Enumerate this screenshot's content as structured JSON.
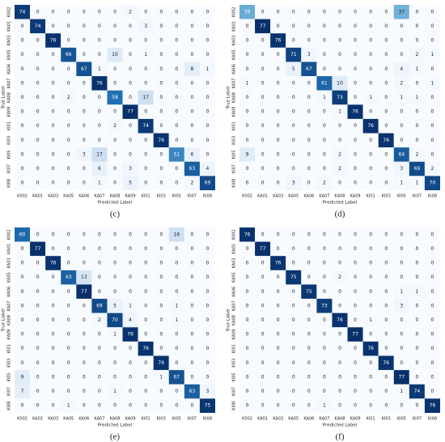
{
  "chart_data": [
    {
      "type": "heatmap",
      "caption": "(c)",
      "x_label": "Predicted Label",
      "y_label": "True Label",
      "categories": [
        "K002",
        "KA01",
        "KA03",
        "KA05",
        "KA06",
        "KA07",
        "KA08",
        "KA09",
        "KI01",
        "KI03",
        "KI05",
        "KI07",
        "KI08"
      ],
      "y_categories": [
        "K002",
        "KA01",
        "KA03",
        "KA05",
        "KA06",
        "KA07",
        "KA08",
        "KA09",
        "KI01",
        "KI03",
        "KI05",
        "KI07",
        "KI08"
      ],
      "colors": [
        "#f7fbff",
        "#c6dbef",
        "#6baed6",
        "#2171b5",
        "#08306b"
      ],
      "values": [
        [
          74,
          0,
          0,
          0,
          0,
          0,
          0,
          2,
          0,
          0,
          0,
          0,
          0
        ],
        [
          0,
          74,
          0,
          0,
          0,
          0,
          0,
          0,
          3,
          0,
          0,
          0,
          0
        ],
        [
          0,
          0,
          76,
          0,
          0,
          0,
          0,
          0,
          0,
          0,
          0,
          0,
          0
        ],
        [
          0,
          0,
          0,
          66,
          0,
          0,
          10,
          0,
          1,
          0,
          0,
          0,
          0
        ],
        [
          0,
          0,
          0,
          0,
          67,
          1,
          0,
          0,
          0,
          0,
          0,
          8,
          1
        ],
        [
          0,
          0,
          0,
          0,
          0,
          76,
          0,
          0,
          0,
          0,
          0,
          0,
          0
        ],
        [
          0,
          0,
          0,
          2,
          0,
          0,
          58,
          0,
          17,
          0,
          0,
          0,
          0
        ],
        [
          0,
          0,
          0,
          0,
          0,
          0,
          0,
          77,
          0,
          0,
          0,
          0,
          0
        ],
        [
          0,
          0,
          0,
          0,
          0,
          0,
          2,
          0,
          74,
          0,
          0,
          0,
          0
        ],
        [
          0,
          0,
          0,
          0,
          0,
          0,
          0,
          0,
          0,
          76,
          0,
          0,
          0
        ],
        [
          0,
          0,
          0,
          0,
          3,
          17,
          0,
          0,
          0,
          0,
          51,
          6,
          0
        ],
        [
          0,
          0,
          0,
          0,
          0,
          6,
          0,
          3,
          0,
          0,
          0,
          63,
          4
        ],
        [
          0,
          0,
          0,
          0,
          0,
          1,
          0,
          5,
          0,
          0,
          0,
          2,
          69
        ]
      ]
    },
    {
      "type": "heatmap",
      "caption": "(d)",
      "x_label": "Predicted Label",
      "y_label": "True Label",
      "categories": [
        "K002",
        "KA01",
        "KA03",
        "KA05",
        "KA06",
        "KA07",
        "KA08",
        "KA09",
        "KI01",
        "KI03",
        "KI05",
        "KI07",
        "KI08"
      ],
      "y_categories": [
        "K002",
        "KA01",
        "KA03",
        "KA05",
        "KA06",
        "KA07",
        "KA08",
        "KA09",
        "KI01",
        "KI03",
        "KI05",
        "KI07",
        "KI08"
      ],
      "colors": [
        "#f7fbff",
        "#c6dbef",
        "#6baed6",
        "#2171b5",
        "#08306b"
      ],
      "values": [
        [
          39,
          0,
          0,
          0,
          0,
          0,
          0,
          0,
          0,
          0,
          37,
          0,
          0
        ],
        [
          0,
          77,
          0,
          0,
          0,
          0,
          0,
          0,
          0,
          0,
          0,
          0,
          0
        ],
        [
          0,
          0,
          76,
          0,
          0,
          0,
          0,
          0,
          0,
          0,
          0,
          0,
          0
        ],
        [
          0,
          0,
          0,
          71,
          3,
          0,
          0,
          0,
          0,
          0,
          0,
          2,
          1
        ],
        [
          0,
          0,
          0,
          5,
          67,
          0,
          0,
          0,
          0,
          0,
          4,
          1,
          0
        ],
        [
          1,
          0,
          0,
          0,
          0,
          61,
          10,
          0,
          0,
          0,
          2,
          0,
          1
        ],
        [
          0,
          0,
          0,
          0,
          0,
          1,
          73,
          0,
          1,
          0,
          1,
          1,
          0
        ],
        [
          0,
          0,
          0,
          0,
          0,
          0,
          1,
          76,
          0,
          0,
          0,
          0,
          0
        ],
        [
          0,
          0,
          0,
          0,
          0,
          0,
          0,
          0,
          76,
          0,
          0,
          0,
          0
        ],
        [
          0,
          0,
          0,
          0,
          0,
          0,
          0,
          0,
          0,
          76,
          0,
          0,
          0
        ],
        [
          9,
          0,
          0,
          0,
          0,
          0,
          2,
          0,
          0,
          0,
          64,
          2,
          0
        ],
        [
          0,
          0,
          0,
          0,
          0,
          0,
          2,
          0,
          0,
          0,
          3,
          69,
          2
        ],
        [
          0,
          0,
          0,
          3,
          0,
          2,
          0,
          0,
          0,
          0,
          1,
          1,
          70
        ]
      ]
    },
    {
      "type": "heatmap",
      "caption": "(e)",
      "x_label": "Predicted Label",
      "y_label": "True Label",
      "categories": [
        "K002",
        "KA01",
        "KA03",
        "KA05",
        "KA06",
        "KA07",
        "KA08",
        "KA09",
        "KI01",
        "KI03",
        "KI05",
        "KI07",
        "KI08"
      ],
      "y_categories": [
        "K002",
        "KA01",
        "KA03",
        "KA05",
        "KA06",
        "KA07",
        "KA08",
        "KA09",
        "KI01",
        "KI03",
        "KI05",
        "KI07",
        "KI08"
      ],
      "colors": [
        "#f7fbff",
        "#c6dbef",
        "#6baed6",
        "#2171b5",
        "#08306b"
      ],
      "values": [
        [
          60,
          0,
          0,
          0,
          0,
          0,
          0,
          0,
          0,
          0,
          16,
          0,
          0
        ],
        [
          0,
          77,
          0,
          0,
          0,
          0,
          0,
          0,
          0,
          0,
          0,
          0,
          0
        ],
        [
          0,
          0,
          76,
          0,
          0,
          0,
          0,
          0,
          0,
          0,
          0,
          0,
          0
        ],
        [
          0,
          0,
          0,
          63,
          13,
          0,
          0,
          0,
          0,
          0,
          0,
          0,
          0
        ],
        [
          0,
          0,
          0,
          0,
          77,
          0,
          0,
          0,
          0,
          0,
          0,
          0,
          0
        ],
        [
          0,
          0,
          0,
          0,
          0,
          69,
          5,
          1,
          0,
          0,
          1,
          0,
          0
        ],
        [
          0,
          0,
          0,
          0,
          0,
          2,
          70,
          4,
          0,
          0,
          1,
          0,
          0
        ],
        [
          0,
          0,
          0,
          0,
          0,
          0,
          1,
          76,
          0,
          0,
          0,
          0,
          0
        ],
        [
          0,
          0,
          0,
          0,
          0,
          0,
          0,
          0,
          76,
          0,
          0,
          0,
          0
        ],
        [
          0,
          0,
          0,
          0,
          0,
          0,
          0,
          0,
          0,
          76,
          0,
          0,
          0
        ],
        [
          9,
          0,
          0,
          0,
          0,
          0,
          0,
          0,
          0,
          1,
          67,
          0,
          0
        ],
        [
          7,
          0,
          0,
          0,
          0,
          0,
          1,
          0,
          0,
          0,
          0,
          63,
          3
        ],
        [
          0,
          0,
          0,
          1,
          0,
          0,
          0,
          0,
          0,
          0,
          0,
          0,
          75
        ]
      ]
    },
    {
      "type": "heatmap",
      "caption": "(f)",
      "x_label": "Predicted Label",
      "y_label": "True Label",
      "categories": [
        "K002",
        "KA01",
        "KA03",
        "KA05",
        "KA06",
        "KA07",
        "KA08",
        "KA09",
        "KI01",
        "KI03",
        "KI05",
        "KI07",
        "KI08"
      ],
      "y_categories": [
        "K002",
        "KA01",
        "KA03",
        "KA05",
        "KA06",
        "KA07",
        "KA08",
        "KA09",
        "KI01",
        "KI03",
        "KI05",
        "KI07",
        "KI08"
      ],
      "colors": [
        "#f7fbff",
        "#c6dbef",
        "#6baed6",
        "#2171b5",
        "#08306b"
      ],
      "values": [
        [
          76,
          0,
          0,
          0,
          0,
          0,
          0,
          0,
          0,
          0,
          0,
          0,
          0
        ],
        [
          0,
          77,
          0,
          0,
          0,
          0,
          0,
          0,
          0,
          0,
          0,
          0,
          0
        ],
        [
          0,
          0,
          76,
          0,
          0,
          0,
          0,
          0,
          0,
          0,
          0,
          0,
          0
        ],
        [
          0,
          0,
          0,
          75,
          0,
          0,
          2,
          0,
          0,
          0,
          0,
          0,
          0
        ],
        [
          0,
          0,
          0,
          0,
          75,
          0,
          0,
          0,
          0,
          0,
          1,
          1,
          0
        ],
        [
          0,
          0,
          0,
          0,
          0,
          73,
          0,
          0,
          0,
          0,
          3,
          0,
          0
        ],
        [
          0,
          0,
          0,
          0,
          0,
          0,
          76,
          0,
          1,
          0,
          0,
          0,
          0
        ],
        [
          0,
          0,
          0,
          0,
          0,
          0,
          0,
          77,
          0,
          0,
          0,
          0,
          0
        ],
        [
          0,
          0,
          0,
          0,
          0,
          0,
          0,
          0,
          76,
          0,
          0,
          0,
          0
        ],
        [
          0,
          0,
          0,
          0,
          0,
          0,
          0,
          0,
          0,
          76,
          0,
          0,
          0
        ],
        [
          0,
          0,
          0,
          0,
          0,
          0,
          0,
          0,
          0,
          0,
          77,
          0,
          0
        ],
        [
          0,
          0,
          0,
          0,
          0,
          0,
          0,
          0,
          0,
          0,
          1,
          74,
          0
        ],
        [
          0,
          0,
          0,
          0,
          0,
          1,
          0,
          0,
          0,
          0,
          0,
          0,
          76
        ]
      ]
    }
  ]
}
